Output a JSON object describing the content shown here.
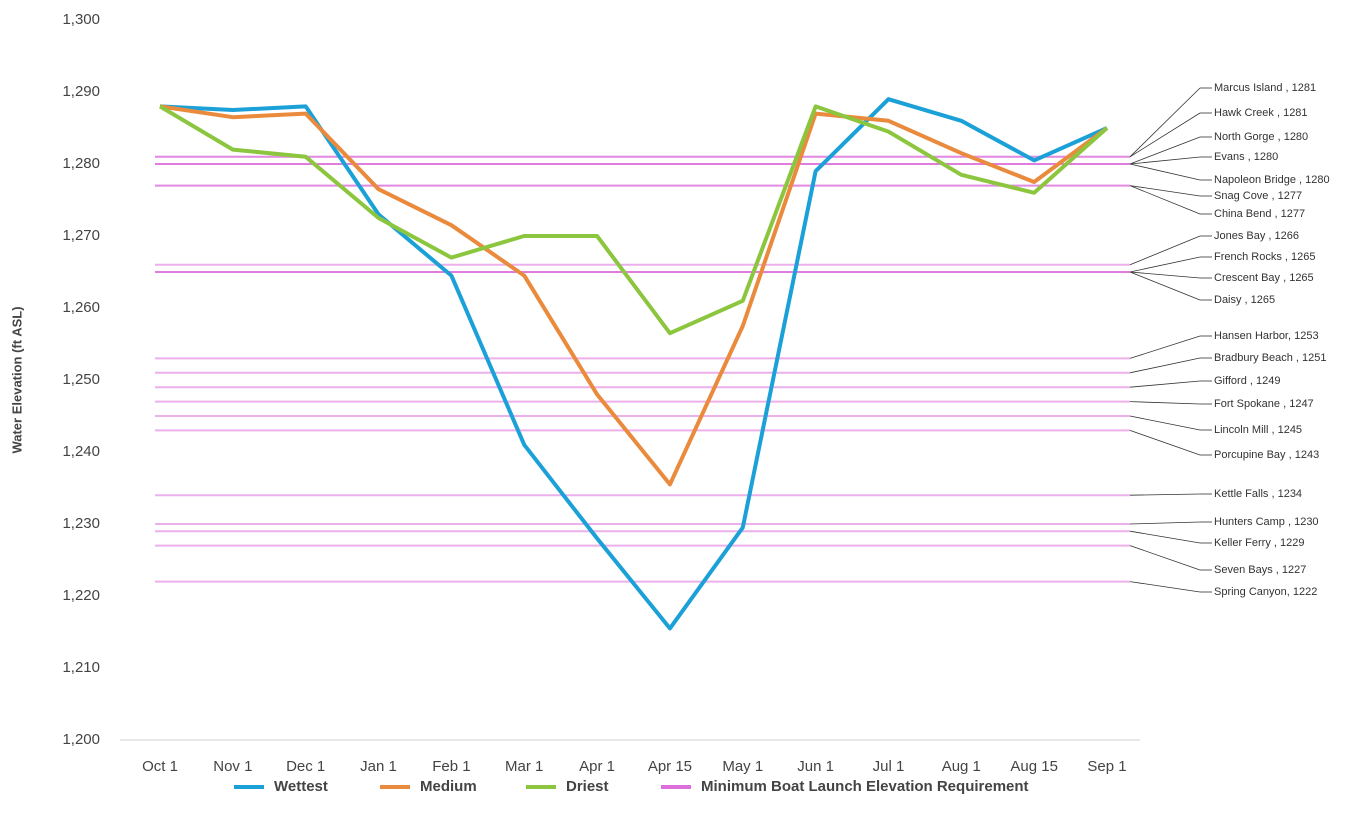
{
  "chart_data": {
    "type": "line",
    "ylabel": "Water Elevation  (ft ASL)",
    "categories": [
      "Oct 1",
      "Nov 1",
      "Dec 1",
      "Jan 1",
      "Feb 1",
      "Mar 1",
      "Apr 1",
      "Apr 15",
      "May 1",
      "Jun 1",
      "Jul 1",
      "Aug 1",
      "Aug 15",
      "Sep 1"
    ],
    "series": [
      {
        "name": "Wettest",
        "color": "#1ba1d8",
        "values": [
          1288,
          1287.5,
          1288,
          1273,
          1264.5,
          1241,
          1228,
          1215.5,
          1229.5,
          1279,
          1289,
          1286,
          1280.5,
          1285
        ]
      },
      {
        "name": "Medium",
        "color": "#ea8a3c",
        "values": [
          1288,
          1286.5,
          1287,
          1276.5,
          1271.5,
          1264.5,
          1248,
          1235.5,
          1257.5,
          1287,
          1286,
          1281.5,
          1277.5,
          1285
        ]
      },
      {
        "name": "Driest",
        "color": "#8cc63f",
        "values": [
          1288,
          1282,
          1281,
          1272.5,
          1267,
          1270,
          1270,
          1256.5,
          1261,
          1288,
          1284.5,
          1278.5,
          1276,
          1285
        ]
      }
    ],
    "reference_name": "Minimum Boat Launch Elevation Requirement",
    "reference_color": "#dd6fdb",
    "references": [
      {
        "label": "Marcus Island , 1281",
        "value": 1281
      },
      {
        "label": "Hawk Creek , 1281",
        "value": 1281
      },
      {
        "label": "North Gorge , 1280",
        "value": 1280
      },
      {
        "label": "Evans , 1280",
        "value": 1280
      },
      {
        "label": "Napoleon Bridge  , 1280",
        "value": 1280
      },
      {
        "label": "Snag Cove , 1277",
        "value": 1277
      },
      {
        "label": "China Bend , 1277",
        "value": 1277
      },
      {
        "label": "Jones Bay , 1266",
        "value": 1266
      },
      {
        "label": "French Rocks , 1265",
        "value": 1265
      },
      {
        "label": "Crescent Bay , 1265",
        "value": 1265
      },
      {
        "label": "Daisy , 1265",
        "value": 1265
      },
      {
        "label": "Hansen Harbor, 1253",
        "value": 1253
      },
      {
        "label": "Bradbury Beach , 1251",
        "value": 1251
      },
      {
        "label": "Gifford , 1249",
        "value": 1249
      },
      {
        "label": "Fort Spokane , 1247",
        "value": 1247
      },
      {
        "label": "Lincoln Mill , 1245",
        "value": 1245
      },
      {
        "label": "Porcupine Bay , 1243",
        "value": 1243
      },
      {
        "label": "Kettle Falls , 1234",
        "value": 1234
      },
      {
        "label": "Hunters Camp , 1230",
        "value": 1230
      },
      {
        "label": "Keller Ferry , 1229",
        "value": 1229
      },
      {
        "label": "Seven Bays , 1227",
        "value": 1227
      },
      {
        "label": "Spring Canyon, 1222",
        "value": 1222
      }
    ],
    "ylim": [
      1200,
      1300
    ],
    "yticks": [
      {
        "value": 1200,
        "label": "1,200"
      },
      {
        "value": 1210,
        "label": "1,210"
      },
      {
        "value": 1220,
        "label": "1,220"
      },
      {
        "value": 1230,
        "label": "1,230"
      },
      {
        "value": 1240,
        "label": "1,240"
      },
      {
        "value": 1250,
        "label": "1,250"
      },
      {
        "value": 1260,
        "label": "1,260"
      },
      {
        "value": 1270,
        "label": "1,270"
      },
      {
        "value": 1280,
        "label": "1,280"
      },
      {
        "value": 1290,
        "label": "1,290"
      },
      {
        "value": 1300,
        "label": "1,300"
      }
    ],
    "grid": false
  }
}
